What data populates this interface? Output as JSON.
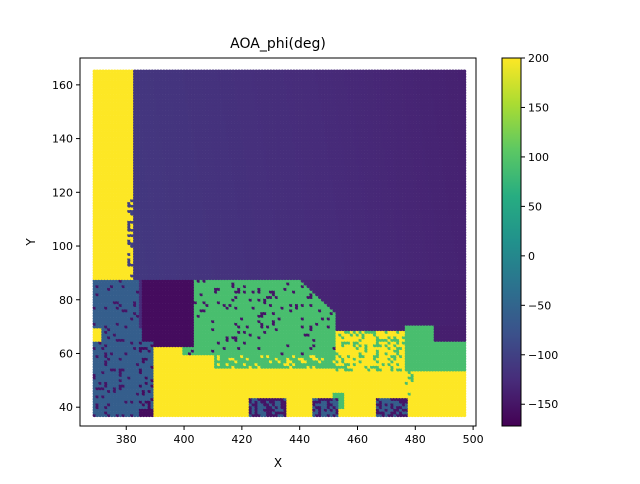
{
  "chart_data": {
    "type": "heatmap",
    "title": "AOA_phi(deg)",
    "xlabel": "X",
    "ylabel": "Y",
    "xlim": [
      364,
      501
    ],
    "ylim": [
      33,
      170
    ],
    "xticks": [
      380,
      400,
      420,
      440,
      460,
      480,
      500
    ],
    "yticks": [
      40,
      60,
      80,
      100,
      120,
      140,
      160
    ],
    "colorbar": {
      "colormap": "viridis",
      "range": [
        -172,
        200
      ],
      "ticks": [
        -150,
        -100,
        -50,
        0,
        50,
        100,
        150,
        200
      ]
    },
    "grid": false,
    "x_extent": [
      369,
      497
    ],
    "y_extent": [
      37,
      165
    ],
    "regions": [
      {
        "label": "left yellow strip",
        "value": 200,
        "x": [
          369,
          382
        ],
        "y": [
          88,
          165
        ]
      },
      {
        "label": "main background gradient",
        "value_left": -110,
        "value_right": -135
      },
      {
        "label": "dark purple patch",
        "value": -160,
        "x": [
          386,
          403
        ],
        "y": [
          63,
          92
        ]
      },
      {
        "label": "green middle region",
        "value": 90,
        "x": [
          400,
          452
        ],
        "y": [
          53,
          87
        ]
      },
      {
        "label": "green right region",
        "value": 90,
        "x": [
          476,
          497
        ],
        "y": [
          53,
          70
        ]
      },
      {
        "label": "bottom yellow region",
        "value": 200,
        "x": [
          384,
          497
        ],
        "y": [
          37,
          65
        ]
      },
      {
        "label": "left blue column",
        "value": -60,
        "x": [
          369,
          389
        ],
        "y": [
          37,
          88
        ]
      }
    ]
  }
}
